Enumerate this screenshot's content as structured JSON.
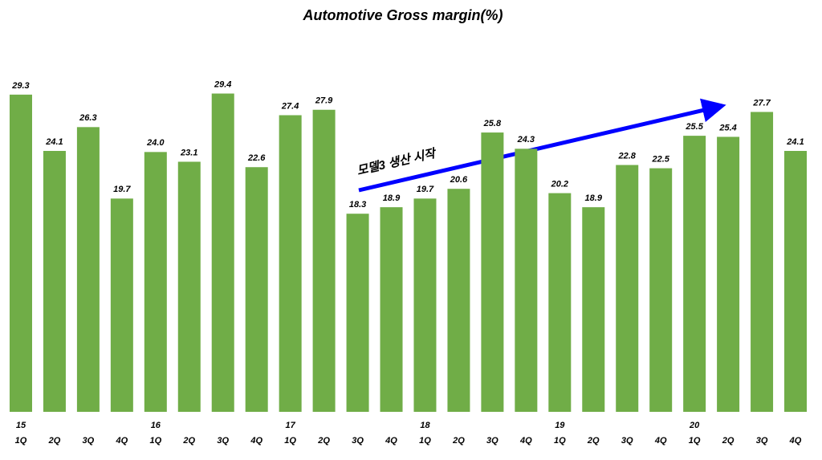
{
  "chart_data": {
    "type": "bar",
    "title": "Automotive  Gross margin(%)",
    "categories": [
      "1Q",
      "2Q",
      "3Q",
      "4Q",
      "1Q",
      "2Q",
      "3Q",
      "4Q",
      "1Q",
      "2Q",
      "3Q",
      "4Q",
      "1Q",
      "2Q",
      "3Q",
      "4Q",
      "1Q",
      "2Q",
      "3Q",
      "4Q",
      "1Q",
      "2Q",
      "3Q",
      "4Q"
    ],
    "year_labels": [
      "15",
      null,
      null,
      null,
      "16",
      null,
      null,
      null,
      "17",
      null,
      null,
      null,
      "18",
      null,
      null,
      null,
      "19",
      null,
      null,
      null,
      "20",
      null,
      null,
      null
    ],
    "values": [
      29.3,
      24.1,
      26.3,
      19.7,
      24.0,
      23.1,
      29.4,
      22.6,
      27.4,
      27.9,
      18.3,
      18.9,
      19.7,
      20.6,
      25.8,
      24.3,
      20.2,
      18.9,
      22.8,
      22.5,
      25.5,
      25.4,
      27.7,
      24.1
    ],
    "value_labels": [
      "29.3",
      "24.1",
      "26.3",
      "19.7",
      "24.0",
      "23.1",
      "29.4",
      "22.6",
      "27.4",
      "27.9",
      "18.3",
      "18.9",
      "19.7",
      "20.6",
      "25.8",
      "24.3",
      "20.2",
      "18.9",
      "22.8",
      "22.5",
      "25.5",
      "25.4",
      "27.7",
      "24.1"
    ],
    "color": "#70ad47",
    "ylim": [
      0,
      35
    ],
    "annotation": "모델3 생산 시작"
  }
}
